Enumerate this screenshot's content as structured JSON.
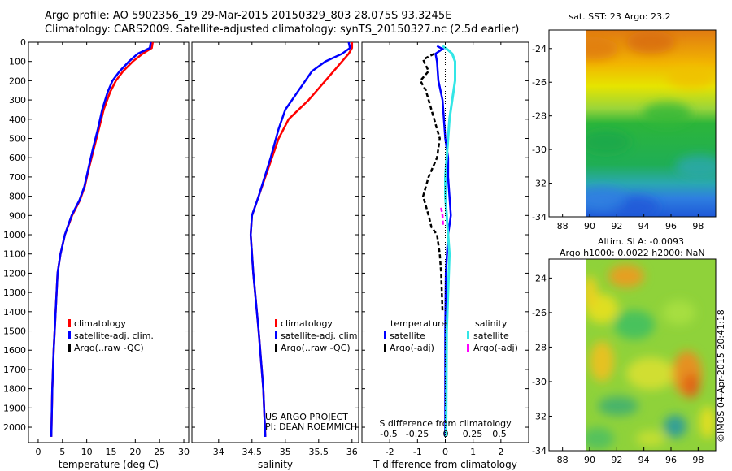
{
  "header": {
    "line1": "Argo profile: AO 5902356_19 29-Mar-2015 20150329_803 28.075S 93.3245E",
    "line2": "Climatology: CARS2009. Satellite-adjusted climatology: synTS_20150327.nc (2.5d earlier)"
  },
  "credit": "©IMOS 04-Apr-2015 20:41:18",
  "colors": {
    "climatology": "#ff0000",
    "satellite": "#0000ff",
    "argo": "#000000",
    "sal_satellite": "#33e6e6",
    "sal_argo": "#ff00ff"
  },
  "chart_data": [
    {
      "type": "line",
      "name": "temperature-panel",
      "xlabel": "temperature (deg C)",
      "xlim": [
        -2,
        31
      ],
      "ylim": [
        2080,
        0
      ],
      "xticks": [
        "0",
        "5",
        "10",
        "15",
        "20",
        "25",
        "30"
      ],
      "yticks": [
        "0",
        "100",
        "200",
        "300",
        "400",
        "500",
        "600",
        "700",
        "800",
        "900",
        "1000",
        "1100",
        "1200",
        "1300",
        "1400",
        "1500",
        "1600",
        "1700",
        "1800",
        "1900",
        "2000"
      ],
      "legend": [
        "climatology",
        "satellite-adj. clim.",
        "Argo(..raw -QC)"
      ],
      "series": [
        {
          "name": "climatology",
          "color": "#ff0000",
          "points": [
            [
              23.6,
              0
            ],
            [
              23.4,
              30
            ],
            [
              21.5,
              60
            ],
            [
              19.5,
              100
            ],
            [
              17.5,
              150
            ],
            [
              16.0,
              200
            ],
            [
              14.8,
              260
            ],
            [
              13.5,
              350
            ],
            [
              12.5,
              450
            ],
            [
              11.5,
              550
            ],
            [
              10.5,
              650
            ],
            [
              9.6,
              750
            ],
            [
              8.6,
              820
            ],
            [
              7.0,
              900
            ],
            [
              5.5,
              1000
            ],
            [
              4.6,
              1100
            ],
            [
              4.0,
              1200
            ],
            [
              3.6,
              1400
            ],
            [
              3.2,
              1600
            ],
            [
              2.9,
              1800
            ],
            [
              2.7,
              2050
            ]
          ]
        },
        {
          "name": "satellite-adj. clim.",
          "color": "#0000ff",
          "points": [
            [
              23.2,
              0
            ],
            [
              23.0,
              30
            ],
            [
              20.5,
              60
            ],
            [
              18.7,
              100
            ],
            [
              16.8,
              150
            ],
            [
              15.3,
              200
            ],
            [
              14.3,
              260
            ],
            [
              13.2,
              350
            ],
            [
              12.3,
              450
            ],
            [
              11.3,
              550
            ],
            [
              10.4,
              650
            ],
            [
              9.5,
              750
            ],
            [
              8.5,
              820
            ],
            [
              6.9,
              900
            ],
            [
              5.5,
              1000
            ],
            [
              4.6,
              1100
            ],
            [
              4.0,
              1200
            ],
            [
              3.6,
              1400
            ],
            [
              3.2,
              1600
            ],
            [
              2.9,
              1800
            ],
            [
              2.7,
              2050
            ]
          ]
        }
      ]
    },
    {
      "type": "line",
      "name": "salinity-panel",
      "xlabel": "salinity",
      "xlim": [
        33.6,
        36.1
      ],
      "ylim": [
        2080,
        0
      ],
      "xticks": [
        "34",
        "34.5",
        "35",
        "35.5",
        "36"
      ],
      "legend": [
        "climatology",
        "satellite-adj. clim.",
        "Argo(..raw -QC)"
      ],
      "annotation": [
        "US ARGO PROJECT",
        "PI: DEAN ROEMMICH"
      ],
      "series": [
        {
          "name": "climatology",
          "color": "#ff0000",
          "points": [
            [
              36.0,
              0
            ],
            [
              36.0,
              30
            ],
            [
              35.95,
              60
            ],
            [
              35.8,
              120
            ],
            [
              35.6,
              200
            ],
            [
              35.35,
              300
            ],
            [
              35.05,
              400
            ],
            [
              34.9,
              500
            ],
            [
              34.75,
              650
            ],
            [
              34.6,
              800
            ],
            [
              34.5,
              900
            ],
            [
              34.48,
              1000
            ],
            [
              34.52,
              1200
            ],
            [
              34.6,
              1500
            ],
            [
              34.67,
              1800
            ],
            [
              34.7,
              2050
            ]
          ]
        },
        {
          "name": "satellite-adj. clim.",
          "color": "#0000ff",
          "points": [
            [
              35.95,
              0
            ],
            [
              35.97,
              30
            ],
            [
              35.85,
              60
            ],
            [
              35.6,
              100
            ],
            [
              35.4,
              150
            ],
            [
              35.2,
              250
            ],
            [
              35.0,
              350
            ],
            [
              34.9,
              450
            ],
            [
              34.78,
              600
            ],
            [
              34.6,
              800
            ],
            [
              34.5,
              900
            ],
            [
              34.48,
              1000
            ],
            [
              34.52,
              1200
            ],
            [
              34.6,
              1500
            ],
            [
              34.67,
              1800
            ],
            [
              34.7,
              2050
            ]
          ]
        }
      ]
    },
    {
      "type": "line",
      "name": "difference-panel",
      "xlabel": "T difference from climatology",
      "xlabel2": "S difference from climatology",
      "xlim": [
        -3,
        3
      ],
      "ylim": [
        2080,
        0
      ],
      "xticks": [
        "-2",
        "-1",
        "0",
        "1",
        "2"
      ],
      "xticks2": [
        "-0.5",
        "-0.25",
        "0",
        "0.25",
        "0.5"
      ],
      "legend_temperature": {
        "title": "temperature",
        "items": [
          "satellite",
          "Argo(-adj)"
        ]
      },
      "legend_salinity": {
        "title": "salinity",
        "items": [
          "satellite",
          "Argo(-adj)"
        ]
      },
      "series": [
        {
          "name": "T satellite",
          "color": "#0000ff",
          "points": [
            [
              -0.3,
              20
            ],
            [
              -0.1,
              35
            ],
            [
              -0.35,
              60
            ],
            [
              -0.3,
              100
            ],
            [
              -0.25,
              200
            ],
            [
              -0.1,
              300
            ],
            [
              -0.05,
              400
            ],
            [
              0,
              500
            ],
            [
              0.1,
              600
            ],
            [
              0.1,
              700
            ],
            [
              0.15,
              800
            ],
            [
              0.2,
              900
            ],
            [
              0.1,
              1000
            ],
            [
              0.02,
              1200
            ],
            [
              0,
              1500
            ],
            [
              0,
              2050
            ]
          ]
        },
        {
          "name": "S satellite",
          "color": "#33e6e6",
          "points": [
            [
              -0.1,
              20
            ],
            [
              0.1,
              40
            ],
            [
              0.25,
              60
            ],
            [
              0.35,
              100
            ],
            [
              0.35,
              200
            ],
            [
              0.25,
              300
            ],
            [
              0.15,
              400
            ],
            [
              0.1,
              500
            ],
            [
              0.05,
              600
            ],
            [
              0,
              700
            ],
            [
              0,
              800
            ],
            [
              0.05,
              900
            ],
            [
              0.1,
              1000
            ],
            [
              0.15,
              1100
            ],
            [
              0.1,
              1300
            ],
            [
              0.05,
              1500
            ],
            [
              0.03,
              2050
            ]
          ]
        },
        {
          "name": "T Argo",
          "color": "#000000",
          "points": [
            [
              -0.4,
              60
            ],
            [
              -0.8,
              90
            ],
            [
              -0.6,
              150
            ],
            [
              -0.9,
              200
            ],
            [
              -0.7,
              250
            ],
            [
              -0.6,
              300
            ],
            [
              -0.4,
              400
            ],
            [
              -0.2,
              500
            ],
            [
              -0.3,
              600
            ],
            [
              -0.6,
              700
            ],
            [
              -0.8,
              800
            ],
            [
              -0.6,
              900
            ],
            [
              -0.5,
              960
            ],
            [
              -0.3,
              1000
            ],
            [
              -0.2,
              1100
            ],
            [
              -0.15,
              1200
            ],
            [
              -0.1,
              1400
            ]
          ]
        },
        {
          "name": "S Argo",
          "color": "#ff00ff",
          "points": [
            [
              -0.15,
              860
            ],
            [
              -0.1,
              900
            ],
            [
              -0.08,
              960
            ]
          ]
        }
      ]
    },
    {
      "type": "heatmap",
      "name": "sst-map",
      "title": "sat. SST: 23 Argo: 23.2",
      "xticks": [
        "88",
        "90",
        "92",
        "94",
        "96",
        "98"
      ],
      "yticks": [
        "-24",
        "-26",
        "-28",
        "-30",
        "-32",
        "-34"
      ]
    },
    {
      "type": "heatmap",
      "name": "sla-map",
      "title": "Altim. SLA: -0.0093",
      "subtitle": "Argo h1000: 0.0022 h2000: NaN",
      "xticks": [
        "88",
        "90",
        "92",
        "94",
        "96",
        "98"
      ],
      "yticks": [
        "-24",
        "-26",
        "-28",
        "-30",
        "-32",
        "-34"
      ]
    }
  ]
}
